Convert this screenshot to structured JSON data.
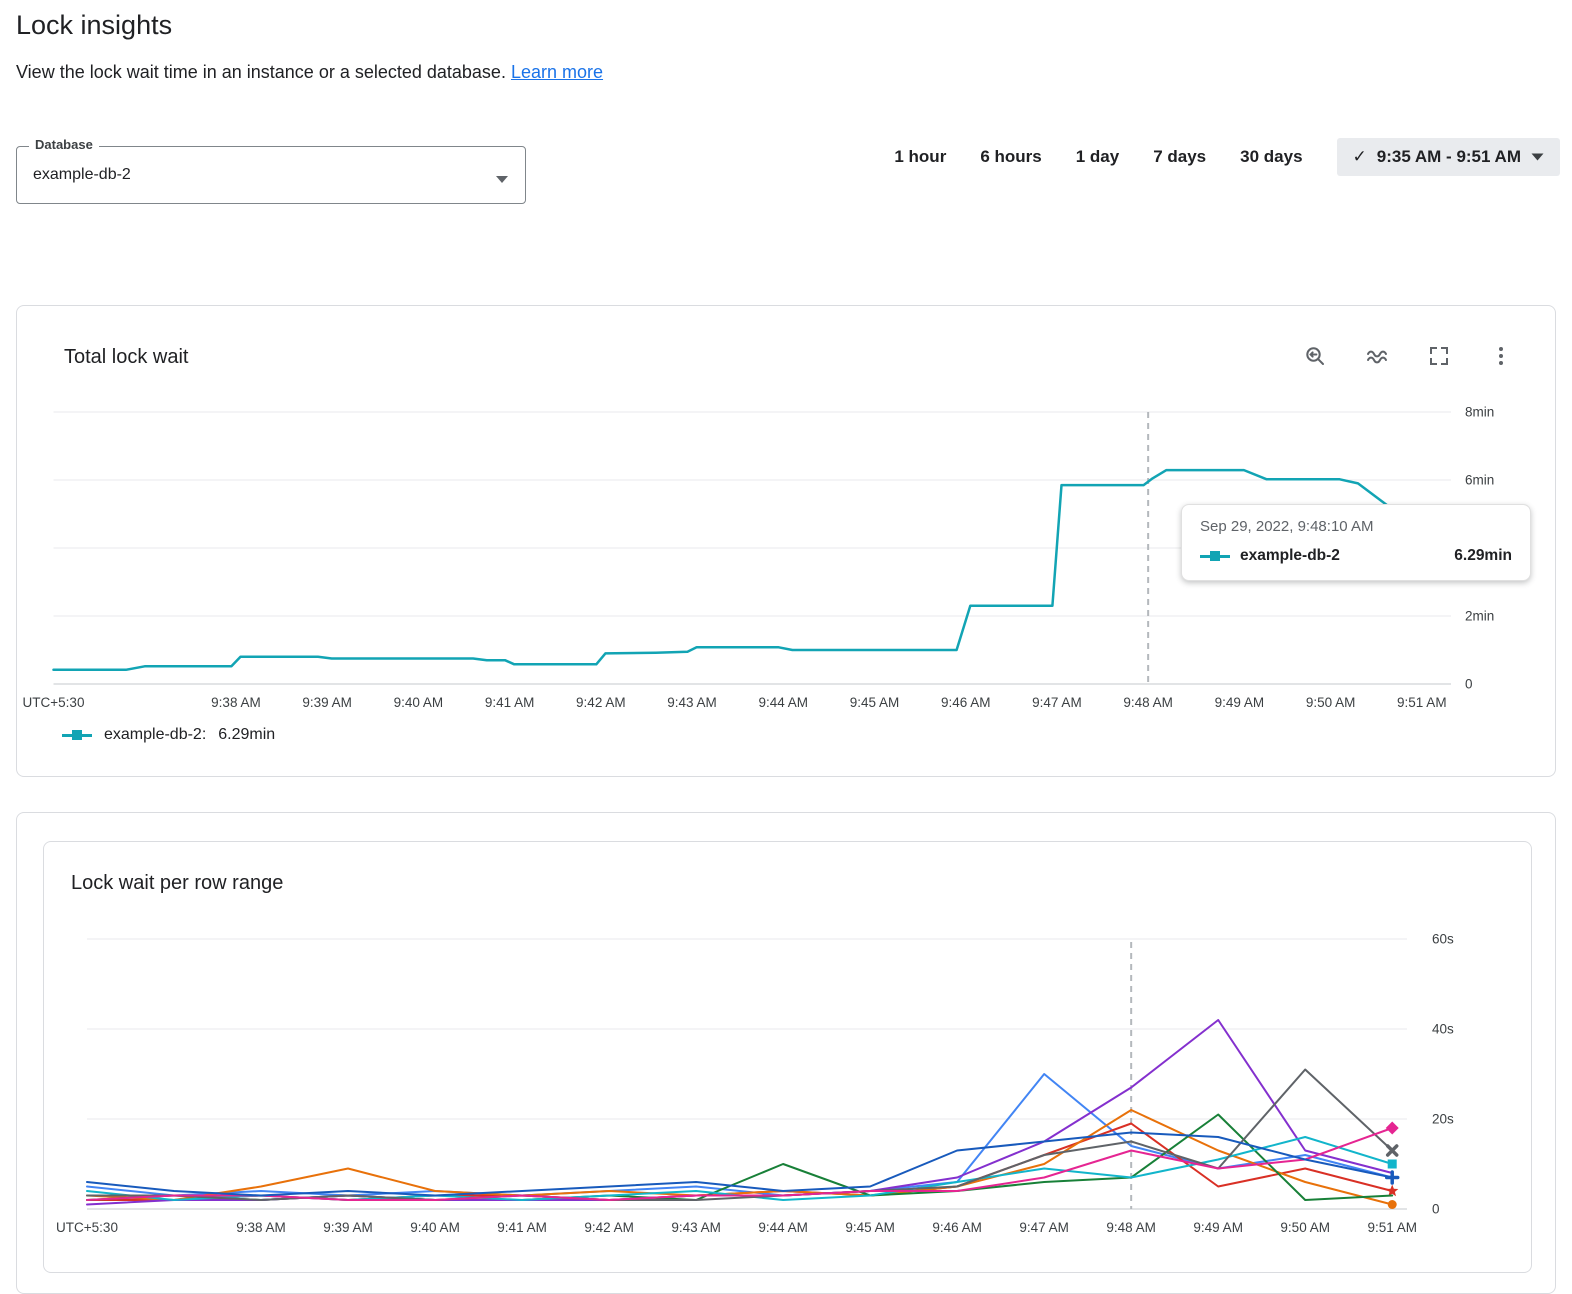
{
  "page": {
    "title": "Lock insights",
    "subtitle": "View the lock wait time in an instance or a selected database.",
    "learn_more": "Learn more"
  },
  "filters": {
    "database": {
      "label": "Database",
      "value": "example-db-2"
    },
    "time_range": {
      "options": [
        "1 hour",
        "6 hours",
        "1 day",
        "7 days",
        "30 days"
      ],
      "selected_check": "✓",
      "selected_label": "9:35 AM - 9:51 AM"
    }
  },
  "total_chart": {
    "title": "Total lock wait",
    "toolbar_icons": [
      "zoom-reset",
      "area-mode",
      "fullscreen",
      "more-options"
    ],
    "accent_color": "#12a4b4",
    "tooltip": {
      "timestamp": "Sep 29, 2022, 9:48:10 AM",
      "series": "example-db-2",
      "value": "6.29min"
    },
    "legend": {
      "label": "example-db-2:",
      "value": "6.29min"
    }
  },
  "row_chart": {
    "title": "Lock wait per row range"
  },
  "chart_data": [
    {
      "type": "line",
      "title": "Total lock wait",
      "yticks": [
        {
          "v": 0,
          "label": "0"
        },
        {
          "v": 2,
          "label": "2min"
        },
        {
          "v": 4,
          "label": "4min"
        },
        {
          "v": 6,
          "label": "6min"
        },
        {
          "v": 8,
          "label": "8min"
        }
      ],
      "xticks": [
        {
          "t": 0,
          "label": "UTC+5:30"
        },
        {
          "t": 2,
          "label": "9:38 AM"
        },
        {
          "t": 3,
          "label": "9:39 AM"
        },
        {
          "t": 4,
          "label": "9:40 AM"
        },
        {
          "t": 5,
          "label": "9:41 AM"
        },
        {
          "t": 6,
          "label": "9:42 AM"
        },
        {
          "t": 7,
          "label": "9:43 AM"
        },
        {
          "t": 8,
          "label": "9:44 AM"
        },
        {
          "t": 9,
          "label": "9:45 AM"
        },
        {
          "t": 10,
          "label": "9:46 AM"
        },
        {
          "t": 11,
          "label": "9:47 AM"
        },
        {
          "t": 12,
          "label": "9:48 AM"
        },
        {
          "t": 13,
          "label": "9:49 AM"
        },
        {
          "t": 14,
          "label": "9:50 AM"
        },
        {
          "t": 15,
          "label": "9:51 AM"
        }
      ],
      "cursor_t": 12,
      "ylim": [
        0,
        8
      ],
      "series": [
        {
          "name": "example-db-2",
          "color": "#12a4b4",
          "points": [
            [
              0,
              0.42
            ],
            [
              0.8,
              0.42
            ],
            [
              1.0,
              0.52
            ],
            [
              1.95,
              0.52
            ],
            [
              2.05,
              0.8
            ],
            [
              2.9,
              0.8
            ],
            [
              3.05,
              0.75
            ],
            [
              4.6,
              0.75
            ],
            [
              4.75,
              0.7
            ],
            [
              4.95,
              0.7
            ],
            [
              5.05,
              0.58
            ],
            [
              5.95,
              0.58
            ],
            [
              6.05,
              0.9
            ],
            [
              6.6,
              0.92
            ],
            [
              6.95,
              0.95
            ],
            [
              7.05,
              1.08
            ],
            [
              7.95,
              1.08
            ],
            [
              8.1,
              1.0
            ],
            [
              9.9,
              1.0
            ],
            [
              10.05,
              2.3
            ],
            [
              10.95,
              2.3
            ],
            [
              11.05,
              5.85
            ],
            [
              11.95,
              5.85
            ],
            [
              12.05,
              6.05
            ],
            [
              12.2,
              6.29
            ],
            [
              13.05,
              6.29
            ],
            [
              13.3,
              6.02
            ],
            [
              14.1,
              6.02
            ],
            [
              14.3,
              5.9
            ],
            [
              15.32,
              3.85
            ]
          ]
        }
      ]
    },
    {
      "type": "line",
      "title": "Lock wait per row range",
      "yticks": [
        {
          "v": 0,
          "label": "0"
        },
        {
          "v": 20,
          "label": "20s"
        },
        {
          "v": 40,
          "label": "40s"
        },
        {
          "v": 60,
          "label": "60s"
        }
      ],
      "xticks": [
        {
          "t": 0,
          "label": "UTC+5:30"
        },
        {
          "t": 2,
          "label": "9:38 AM"
        },
        {
          "t": 3,
          "label": "9:39 AM"
        },
        {
          "t": 4,
          "label": "9:40 AM"
        },
        {
          "t": 5,
          "label": "9:41 AM"
        },
        {
          "t": 6,
          "label": "9:42 AM"
        },
        {
          "t": 7,
          "label": "9:43 AM"
        },
        {
          "t": 8,
          "label": "9:44 AM"
        },
        {
          "t": 9,
          "label": "9:45 AM"
        },
        {
          "t": 10,
          "label": "9:46 AM"
        },
        {
          "t": 11,
          "label": "9:47 AM"
        },
        {
          "t": 12,
          "label": "9:48 AM"
        },
        {
          "t": 13,
          "label": "9:49 AM"
        },
        {
          "t": 14,
          "label": "9:50 AM"
        },
        {
          "t": 15,
          "label": "9:51 AM"
        }
      ],
      "cursor_t": 12,
      "ylim": [
        0,
        60
      ],
      "series": [
        {
          "color": "#4285f4",
          "values": [
            5,
            3,
            4,
            3,
            4,
            3,
            4,
            5,
            3,
            4,
            6,
            30,
            14,
            9,
            12,
            7
          ]
        },
        {
          "color": "#d93025",
          "values": [
            2,
            2,
            3,
            2,
            3,
            3,
            2,
            3,
            4,
            3,
            5,
            12,
            19,
            5,
            9,
            4
          ],
          "end_marker": "star"
        },
        {
          "color": "#e8710a",
          "values": [
            3,
            2,
            5,
            9,
            4,
            3,
            4,
            3,
            4,
            3,
            5,
            10,
            22,
            13,
            6,
            1
          ],
          "end_marker": "circle"
        },
        {
          "color": "#188038",
          "values": [
            2,
            3,
            2,
            3,
            2,
            2,
            3,
            2,
            10,
            3,
            4,
            6,
            7,
            21,
            2,
            3
          ]
        },
        {
          "color": "#8430ce",
          "values": [
            1,
            2,
            2,
            3,
            2,
            2,
            2,
            3,
            3,
            4,
            7,
            15,
            27,
            42,
            13,
            8
          ]
        },
        {
          "color": "#12b5cb",
          "values": [
            4,
            2,
            3,
            2,
            3,
            2,
            3,
            4,
            2,
            3,
            6,
            9,
            7,
            11,
            16,
            10
          ],
          "end_marker": "square"
        },
        {
          "color": "#5f6368",
          "values": [
            3,
            3,
            2,
            3,
            2,
            3,
            2,
            2,
            3,
            4,
            5,
            12,
            15,
            9,
            31,
            13
          ],
          "end_marker": "x"
        },
        {
          "color": "#e52592",
          "values": [
            2,
            3,
            3,
            2,
            2,
            3,
            2,
            3,
            3,
            4,
            4,
            7,
            13,
            9,
            11,
            18
          ],
          "end_marker": "diamond"
        },
        {
          "color": "#185abc",
          "values": [
            6,
            4,
            3,
            4,
            3,
            4,
            5,
            6,
            4,
            5,
            13,
            15,
            17,
            16,
            11,
            7
          ],
          "end_marker": "plus"
        }
      ]
    }
  ]
}
